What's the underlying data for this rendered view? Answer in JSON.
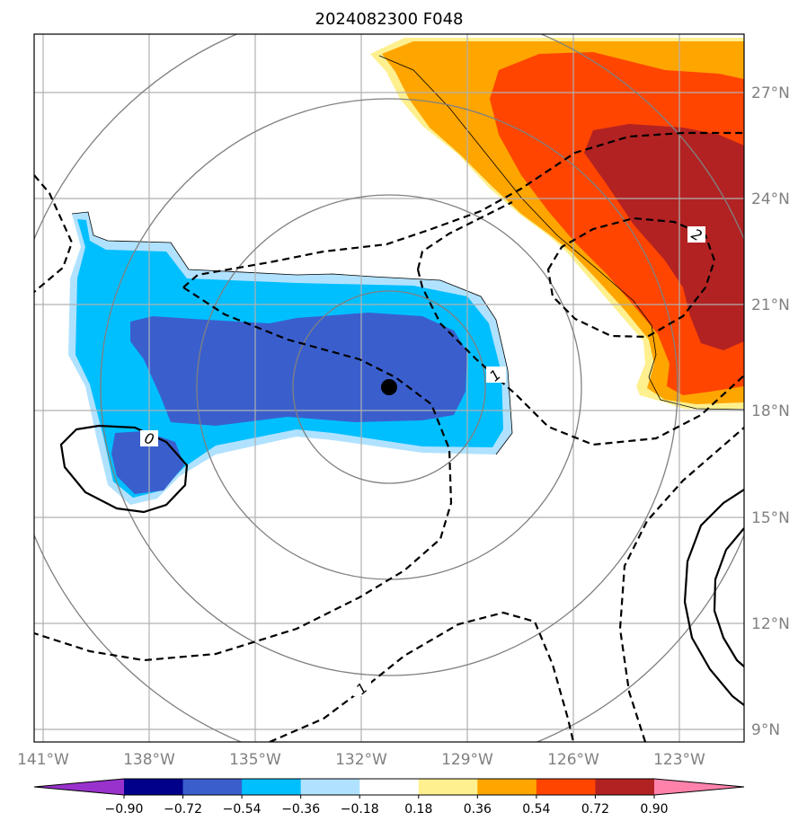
{
  "title": "2024082300 F048",
  "map": {
    "lat_labels": [
      "27°N",
      "24°N",
      "21°N",
      "18°N",
      "15°N",
      "12°N",
      "9°N"
    ],
    "lon_labels": [
      "141°W",
      "138°W",
      "135°W",
      "132°W",
      "129°W",
      "126°W",
      "123°W"
    ],
    "gridlines": true,
    "range_rings": 4,
    "storm_center": {
      "lon": -130.8,
      "lat": 18.7
    },
    "contour_labels": [
      "1",
      "1",
      "2",
      "0"
    ]
  },
  "colorbar": {
    "ticks": [
      "−0.90",
      "−0.72",
      "−0.54",
      "−0.36",
      "−0.18",
      "0.18",
      "0.36",
      "0.54",
      "0.72",
      "0.90"
    ],
    "colors": [
      "#9932cc",
      "#00008b",
      "#3a5fcd",
      "#00bfff",
      "#b0e2ff",
      "#ffffff",
      "#fff08f",
      "#ffa500",
      "#ff4500",
      "#b22222",
      "#ff82ab"
    ]
  }
}
